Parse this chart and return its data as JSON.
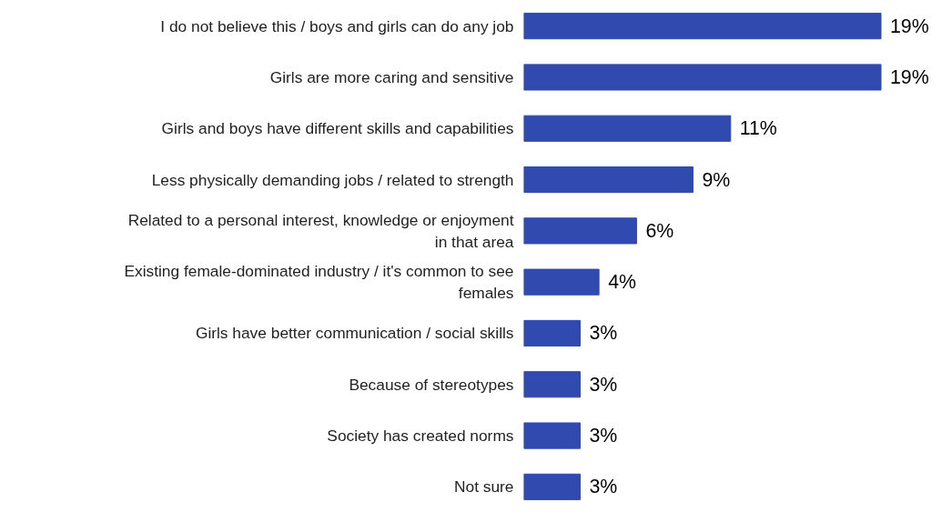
{
  "chart_data": {
    "type": "bar",
    "orientation": "horizontal",
    "categories": [
      "I do not believe this / boys and girls can do any job",
      "Girls are more caring and sensitive",
      "Girls and boys have different skills and capabilities",
      "Less physically demanding jobs / related to strength",
      "Related to a personal interest, knowledge or enjoyment in that area",
      "Existing female-dominated industry / it's common to see females",
      "Girls have better communication / social skills",
      "Because of stereotypes",
      "Society has created norms",
      "Not sure"
    ],
    "values": [
      19,
      19,
      11,
      9,
      6,
      4,
      3,
      3,
      3,
      3
    ],
    "value_labels": [
      "19%",
      "19%",
      "11%",
      "9%",
      "6%",
      "4%",
      "3%",
      "3%",
      "3%",
      "3%"
    ],
    "color": "#304aaf"
  }
}
